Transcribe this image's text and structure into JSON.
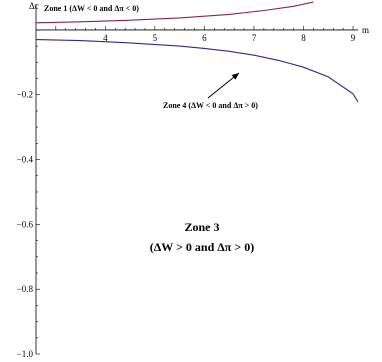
{
  "chart_data": {
    "type": "line",
    "xlabel": "m",
    "ylabel": "Δc",
    "xlim": [
      2.6,
      9.1
    ],
    "ylim": [
      -1.0,
      0.08
    ],
    "x_ticks": [
      4,
      5,
      6,
      7,
      8,
      9
    ],
    "y_ticks": [
      -1.0,
      -0.8,
      -0.6,
      -0.4,
      -0.2
    ],
    "y_tick_labels": [
      "−1.0",
      "−0.8",
      "−0.6",
      "−0.4",
      "−0.2"
    ],
    "grid": false,
    "series": [
      {
        "color": "#8b2252",
        "x": [
          2.6,
          3.5,
          4.5,
          5.5,
          6.5,
          7.2,
          7.8,
          8.2
        ],
        "y": [
          0.022,
          0.025,
          0.03,
          0.037,
          0.048,
          0.06,
          0.073,
          0.086
        ]
      },
      {
        "color": "#2d2a8c",
        "x": [
          2.6,
          3.5,
          4.5,
          5.5,
          6.0,
          6.5,
          7.0,
          7.5,
          8.0,
          8.5,
          9.0,
          9.1
        ],
        "y": [
          -0.03,
          -0.033,
          -0.04,
          -0.05,
          -0.057,
          -0.066,
          -0.078,
          -0.094,
          -0.115,
          -0.145,
          -0.197,
          -0.222
        ]
      }
    ],
    "annotations": {
      "zone1": "Zone 1 (ΔW < 0 and Δπ < 0)",
      "zone4": "Zone 4 (ΔW < 0 and Δπ > 0)",
      "zone3_line1": "Zone 3",
      "zone3_line2": "(ΔW > 0 and Δπ > 0)"
    }
  }
}
